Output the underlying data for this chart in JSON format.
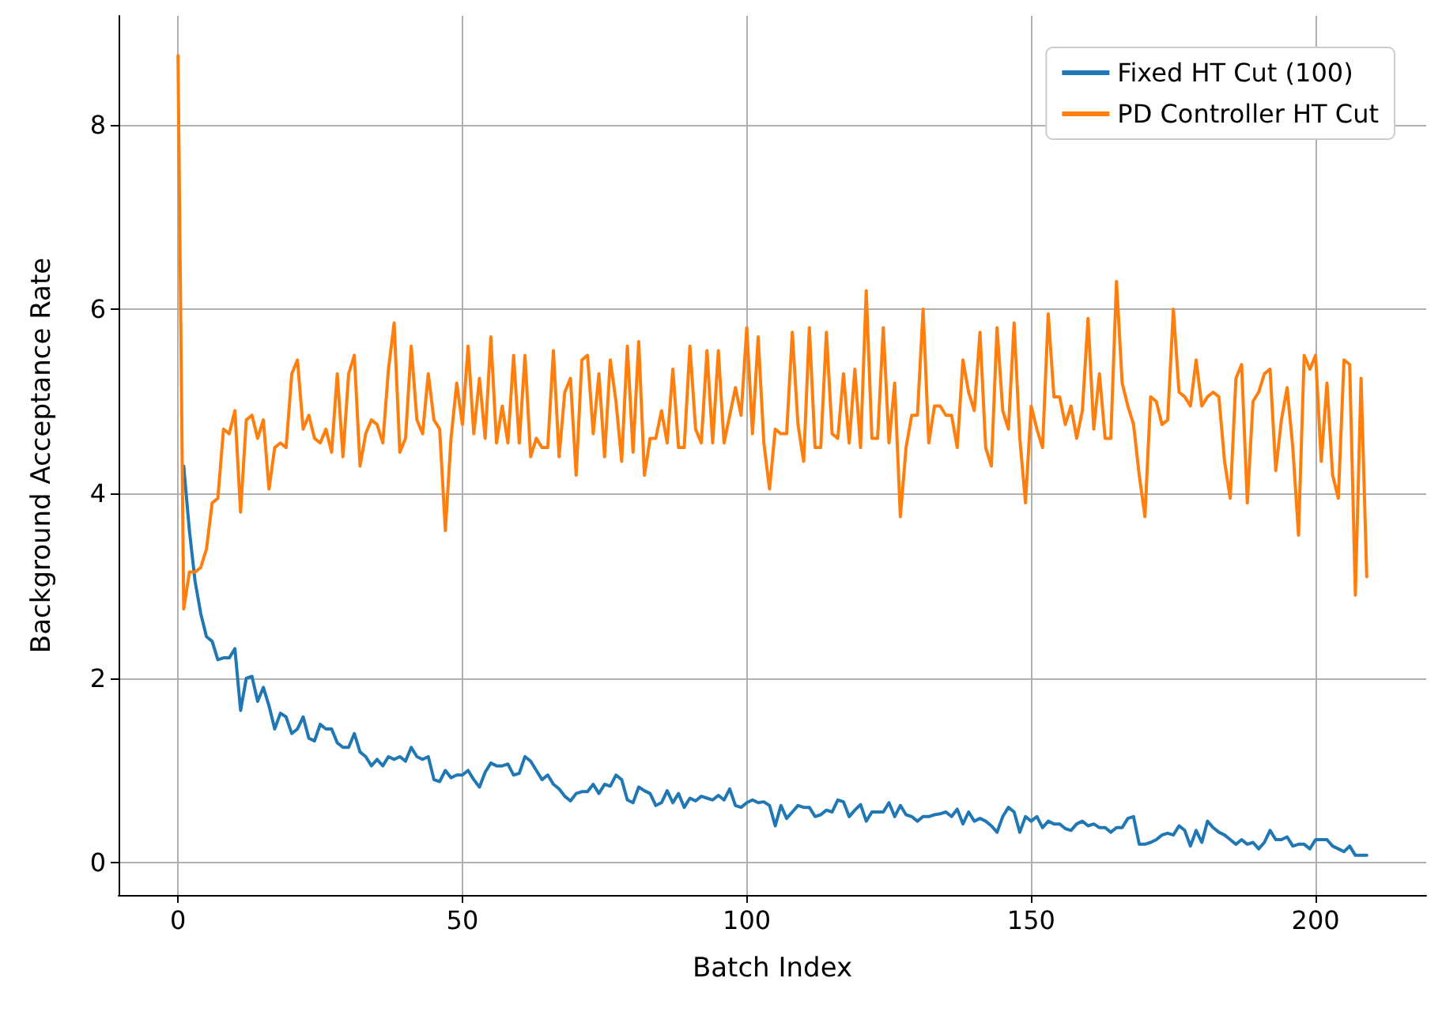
{
  "chart_data": {
    "type": "line",
    "xlabel": "Batch Index",
    "ylabel": "Background Acceptance Rate",
    "x": [
      0,
      1,
      2,
      3,
      4,
      5,
      6,
      7,
      8,
      9,
      10,
      11,
      12,
      13,
      14,
      15,
      16,
      17,
      18,
      19,
      20,
      21,
      22,
      23,
      24,
      25,
      26,
      27,
      28,
      29,
      30,
      31,
      32,
      33,
      34,
      35,
      36,
      37,
      38,
      39,
      40,
      41,
      42,
      43,
      44,
      45,
      46,
      47,
      48,
      49,
      50,
      51,
      52,
      53,
      54,
      55,
      56,
      57,
      58,
      59,
      60,
      61,
      62,
      63,
      64,
      65,
      66,
      67,
      68,
      69,
      70,
      71,
      72,
      73,
      74,
      75,
      76,
      77,
      78,
      79,
      80,
      81,
      82,
      83,
      84,
      85,
      86,
      87,
      88,
      89,
      90,
      91,
      92,
      93,
      94,
      95,
      96,
      97,
      98,
      99,
      100,
      101,
      102,
      103,
      104,
      105,
      106,
      107,
      108,
      109,
      110,
      111,
      112,
      113,
      114,
      115,
      116,
      117,
      118,
      119,
      120,
      121,
      122,
      123,
      124,
      125,
      126,
      127,
      128,
      129,
      130,
      131,
      132,
      133,
      134,
      135,
      136,
      137,
      138,
      139,
      140,
      141,
      142,
      143,
      144,
      145,
      146,
      147,
      148,
      149,
      150,
      151,
      152,
      153,
      154,
      155,
      156,
      157,
      158,
      159,
      160,
      161,
      162,
      163,
      164,
      165,
      166,
      167,
      168,
      169,
      170,
      171,
      172,
      173,
      174,
      175,
      176,
      177,
      178,
      179,
      180,
      181,
      182,
      183,
      184,
      185,
      186,
      187,
      188,
      189,
      190,
      191,
      192,
      193,
      194,
      195,
      196,
      197,
      198,
      199,
      200,
      201,
      202,
      203,
      204,
      205,
      206,
      207,
      208,
      209
    ],
    "series": [
      {
        "name": "Fixed HT Cut (100)",
        "color": "#1f77b4",
        "values": [
          null,
          4.3,
          3.6,
          3.05,
          2.7,
          2.45,
          2.4,
          2.2,
          2.22,
          2.22,
          2.32,
          1.65,
          2.0,
          2.02,
          1.75,
          1.9,
          1.7,
          1.45,
          1.62,
          1.58,
          1.4,
          1.45,
          1.58,
          1.35,
          1.32,
          1.5,
          1.45,
          1.45,
          1.3,
          1.25,
          1.25,
          1.4,
          1.2,
          1.15,
          1.05,
          1.12,
          1.05,
          1.15,
          1.12,
          1.15,
          1.1,
          1.25,
          1.15,
          1.12,
          1.15,
          0.9,
          0.88,
          1.0,
          0.92,
          0.95,
          0.95,
          1.0,
          0.9,
          0.82,
          0.98,
          1.08,
          1.05,
          1.05,
          1.07,
          0.95,
          0.97,
          1.15,
          1.1,
          1.0,
          0.9,
          0.95,
          0.85,
          0.8,
          0.72,
          0.67,
          0.75,
          0.77,
          0.77,
          0.85,
          0.75,
          0.85,
          0.83,
          0.95,
          0.9,
          0.68,
          0.65,
          0.82,
          0.78,
          0.75,
          0.62,
          0.65,
          0.78,
          0.65,
          0.75,
          0.6,
          0.7,
          0.67,
          0.72,
          0.7,
          0.68,
          0.73,
          0.68,
          0.8,
          0.62,
          0.6,
          0.65,
          0.68,
          0.65,
          0.66,
          0.62,
          0.4,
          0.62,
          0.48,
          0.55,
          0.62,
          0.6,
          0.6,
          0.5,
          0.52,
          0.57,
          0.55,
          0.68,
          0.66,
          0.5,
          0.57,
          0.63,
          0.45,
          0.55,
          0.55,
          0.55,
          0.65,
          0.5,
          0.62,
          0.52,
          0.5,
          0.45,
          0.5,
          0.5,
          0.52,
          0.53,
          0.55,
          0.5,
          0.58,
          0.42,
          0.55,
          0.45,
          0.48,
          0.45,
          0.4,
          0.33,
          0.5,
          0.6,
          0.55,
          0.33,
          0.5,
          0.45,
          0.5,
          0.38,
          0.45,
          0.42,
          0.42,
          0.37,
          0.35,
          0.42,
          0.45,
          0.4,
          0.42,
          0.38,
          0.38,
          0.33,
          0.38,
          0.38,
          0.48,
          0.5,
          0.2,
          0.2,
          0.22,
          0.25,
          0.3,
          0.32,
          0.3,
          0.4,
          0.35,
          0.18,
          0.35,
          0.22,
          0.45,
          0.38,
          0.33,
          0.3,
          0.25,
          0.2,
          0.25,
          0.2,
          0.22,
          0.15,
          0.22,
          0.35,
          0.25,
          0.25,
          0.28,
          0.18,
          0.2,
          0.2,
          0.15,
          0.25,
          0.25,
          0.25,
          0.18,
          0.15,
          0.12,
          0.18,
          0.08,
          0.08,
          0.08
        ]
      },
      {
        "name": "PD Controller HT Cut",
        "color": "#ff7f0e",
        "values": [
          8.75,
          2.75,
          3.15,
          3.15,
          3.2,
          3.4,
          3.9,
          3.95,
          4.7,
          4.65,
          4.9,
          3.8,
          4.8,
          4.85,
          4.6,
          4.8,
          4.05,
          4.5,
          4.55,
          4.5,
          5.3,
          5.45,
          4.7,
          4.85,
          4.6,
          4.55,
          4.7,
          4.45,
          5.3,
          4.4,
          5.3,
          5.5,
          4.3,
          4.65,
          4.8,
          4.75,
          4.55,
          5.35,
          5.85,
          4.45,
          4.6,
          5.6,
          4.8,
          4.65,
          5.3,
          4.8,
          4.7,
          3.6,
          4.6,
          5.2,
          4.75,
          5.6,
          4.65,
          5.25,
          4.6,
          5.7,
          4.55,
          4.95,
          4.55,
          5.5,
          4.55,
          5.5,
          4.4,
          4.6,
          4.5,
          4.5,
          5.55,
          4.4,
          5.1,
          5.25,
          4.2,
          5.45,
          5.5,
          4.65,
          5.3,
          4.4,
          5.45,
          5.0,
          4.35,
          5.6,
          4.45,
          5.65,
          4.2,
          4.6,
          4.6,
          4.9,
          4.55,
          5.35,
          4.5,
          4.5,
          5.6,
          4.7,
          4.55,
          5.55,
          4.55,
          5.55,
          4.55,
          4.85,
          5.15,
          4.85,
          5.8,
          4.65,
          5.7,
          4.55,
          4.05,
          4.7,
          4.65,
          4.65,
          5.75,
          4.75,
          4.35,
          5.8,
          4.5,
          4.5,
          5.75,
          4.65,
          4.6,
          5.3,
          4.55,
          5.35,
          4.5,
          6.2,
          4.6,
          4.6,
          5.8,
          4.55,
          5.2,
          3.75,
          4.5,
          4.85,
          4.85,
          6.0,
          4.55,
          4.95,
          4.95,
          4.85,
          4.85,
          4.5,
          5.45,
          5.1,
          4.9,
          5.75,
          4.5,
          4.3,
          5.8,
          4.9,
          4.7,
          5.85,
          4.6,
          3.9,
          4.95,
          4.7,
          4.5,
          5.95,
          5.05,
          5.05,
          4.75,
          4.95,
          4.6,
          4.9,
          5.9,
          4.7,
          5.3,
          4.6,
          4.6,
          6.3,
          5.2,
          4.95,
          4.75,
          4.2,
          3.75,
          5.05,
          5.0,
          4.75,
          4.8,
          6.0,
          5.1,
          5.05,
          4.95,
          5.45,
          4.95,
          5.05,
          5.1,
          5.05,
          4.35,
          3.95,
          5.25,
          5.4,
          3.9,
          5.0,
          5.1,
          5.3,
          5.35,
          4.25,
          4.8,
          5.15,
          4.5,
          3.55,
          5.5,
          5.35,
          5.5,
          4.35,
          5.2,
          4.2,
          3.95,
          5.45,
          5.4,
          2.9,
          5.25,
          3.1
        ]
      }
    ],
    "xlim": [
      -10.45,
      219.45
    ],
    "ylim": [
      -0.35,
      9.18
    ],
    "xticks": [
      0,
      50,
      100,
      150,
      200
    ],
    "yticks": [
      0,
      2,
      4,
      6,
      8
    ],
    "grid": true,
    "legend": "top right",
    "line_style": "solid",
    "marker": "none"
  }
}
